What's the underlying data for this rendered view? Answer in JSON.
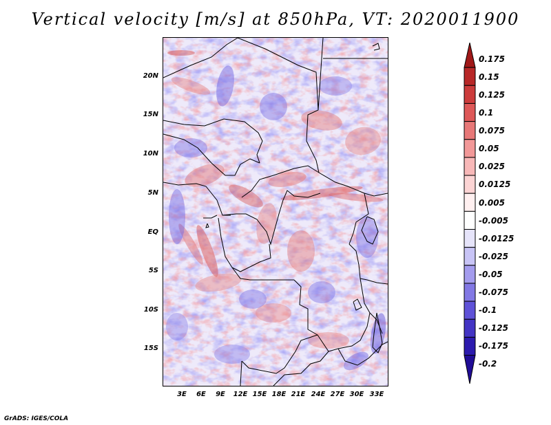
{
  "title": "Vertical velocity [m/s] at 850hPa, VT: 2020011900",
  "credit": "GrADS: IGES/COLA",
  "map": {
    "lat_ticks": [
      "20N",
      "15N",
      "10N",
      "5N",
      "EQ",
      "5S",
      "10S",
      "15S"
    ],
    "lon_ticks": [
      "3E",
      "6E",
      "9E",
      "12E",
      "15E",
      "18E",
      "21E",
      "24E",
      "27E",
      "30E",
      "33E"
    ]
  },
  "colorbar": {
    "labels": [
      "0.175",
      "0.15",
      "0.125",
      "0.1",
      "0.075",
      "0.05",
      "0.025",
      "0.0125",
      "0.005",
      "-0.005",
      "-0.0125",
      "-0.025",
      "-0.05",
      "-0.075",
      "-0.1",
      "-0.125",
      "-0.175",
      "-0.2"
    ],
    "colors": [
      "#a01818",
      "#b82828",
      "#cc3c3c",
      "#de5858",
      "#e87878",
      "#f29898",
      "#f8b8b8",
      "#fcd4d4",
      "#fff0f0",
      "#ffffff",
      "#e6e4fa",
      "#c8c4f6",
      "#a49cee",
      "#8278e4",
      "#5f52d8",
      "#4334c4",
      "#2c1aae",
      "#200c96"
    ]
  }
}
